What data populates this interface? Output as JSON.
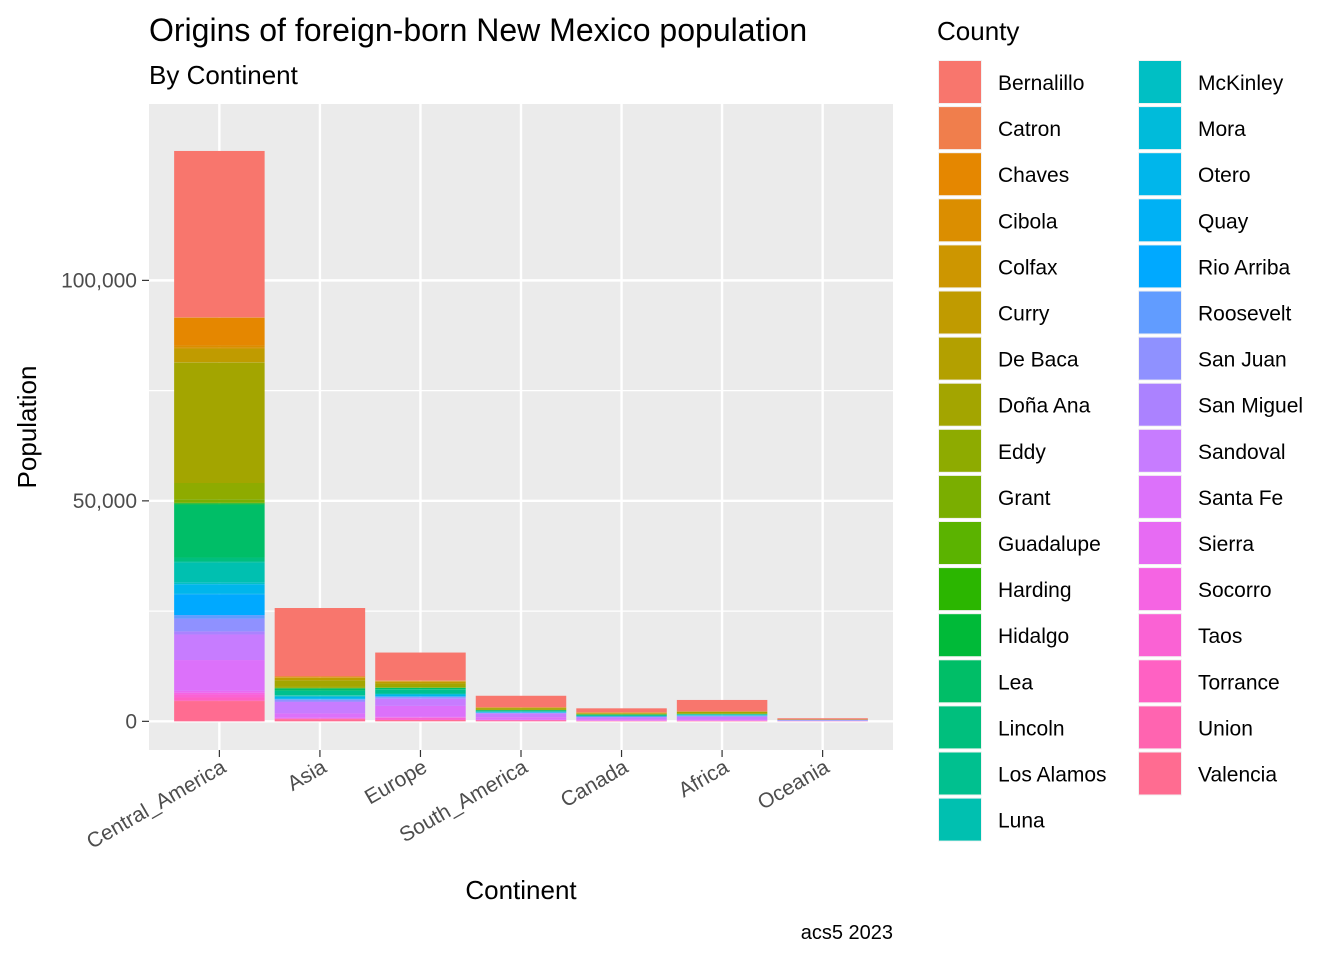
{
  "chart_data": {
    "type": "bar",
    "stacked": true,
    "title": "Origins of foreign-born New Mexico population",
    "subtitle": "By Continent",
    "xlabel": "Continent",
    "ylabel": "Population",
    "caption": "acs5 2023",
    "ylim": [
      -6500,
      140000
    ],
    "yticks": [
      0,
      50000,
      100000
    ],
    "ytick_labels": [
      "0",
      "50,000",
      "100,000"
    ],
    "grid": true,
    "legend_title": "County",
    "legend_position": "right",
    "categories": [
      "Central_America",
      "Asia",
      "Europe",
      "South_America",
      "Canada",
      "Africa",
      "Oceania"
    ],
    "series": [
      {
        "name": "Bernalillo",
        "color": "#F8766D",
        "values": [
          37700,
          15500,
          6300,
          2600,
          900,
          2600,
          300
        ]
      },
      {
        "name": "Catron",
        "color": "#F07E4C",
        "values": [
          100,
          0,
          100,
          0,
          0,
          0,
          0
        ]
      },
      {
        "name": "Chaves",
        "color": "#E58700",
        "values": [
          6300,
          200,
          100,
          100,
          100,
          0,
          0
        ]
      },
      {
        "name": "Cibola",
        "color": "#DB8E00",
        "values": [
          500,
          100,
          50,
          0,
          50,
          0,
          0
        ]
      },
      {
        "name": "Colfax",
        "color": "#CD9600",
        "values": [
          300,
          0,
          50,
          0,
          50,
          0,
          0
        ]
      },
      {
        "name": "Curry",
        "color": "#C09B00",
        "values": [
          3000,
          600,
          400,
          100,
          100,
          100,
          0
        ]
      },
      {
        "name": "De Baca",
        "color": "#B3A000",
        "values": [
          100,
          0,
          0,
          0,
          0,
          0,
          0
        ]
      },
      {
        "name": "Doña Ana",
        "color": "#A3A500",
        "values": [
          27300,
          1500,
          700,
          400,
          100,
          400,
          50
        ]
      },
      {
        "name": "Eddy",
        "color": "#8EAB00",
        "values": [
          3700,
          200,
          200,
          50,
          50,
          50,
          0
        ]
      },
      {
        "name": "Grant",
        "color": "#7AAE00",
        "values": [
          800,
          100,
          100,
          0,
          50,
          0,
          0
        ]
      },
      {
        "name": "Guadalupe",
        "color": "#5BB300",
        "values": [
          100,
          0,
          0,
          0,
          0,
          0,
          0
        ]
      },
      {
        "name": "Harding",
        "color": "#2BB600",
        "values": [
          0,
          0,
          0,
          0,
          0,
          0,
          0
        ]
      },
      {
        "name": "Hidalgo",
        "color": "#00BA38",
        "values": [
          300,
          0,
          0,
          0,
          0,
          0,
          0
        ]
      },
      {
        "name": "Lea",
        "color": "#00BE67",
        "values": [
          12000,
          500,
          300,
          100,
          100,
          100,
          0
        ]
      },
      {
        "name": "Lincoln",
        "color": "#00BF7D",
        "values": [
          800,
          100,
          100,
          0,
          50,
          0,
          0
        ]
      },
      {
        "name": "Los Alamos",
        "color": "#00C08F",
        "values": [
          300,
          1000,
          900,
          200,
          200,
          100,
          50
        ]
      },
      {
        "name": "Luna",
        "color": "#00C0B0",
        "values": [
          4500,
          100,
          100,
          50,
          0,
          0,
          0
        ]
      },
      {
        "name": "McKinley",
        "color": "#00BFC4",
        "values": [
          400,
          200,
          100,
          50,
          0,
          100,
          0
        ]
      },
      {
        "name": "Mora",
        "color": "#00BBDA",
        "values": [
          50,
          0,
          0,
          0,
          0,
          0,
          0
        ]
      },
      {
        "name": "Otero",
        "color": "#00B6EB",
        "values": [
          2200,
          500,
          400,
          100,
          100,
          100,
          50
        ]
      },
      {
        "name": "Quay",
        "color": "#00B1F4",
        "values": [
          100,
          0,
          0,
          0,
          0,
          0,
          0
        ]
      },
      {
        "name": "Rio Arriba",
        "color": "#00A9FF",
        "values": [
          4700,
          100,
          100,
          100,
          0,
          0,
          0
        ]
      },
      {
        "name": "Roosevelt",
        "color": "#619CFF",
        "values": [
          800,
          100,
          100,
          50,
          0,
          50,
          0
        ]
      },
      {
        "name": "San Juan",
        "color": "#8F91FF",
        "values": [
          2900,
          400,
          300,
          100,
          200,
          200,
          0
        ]
      },
      {
        "name": "San Miguel",
        "color": "#AB82FF",
        "values": [
          700,
          100,
          100,
          50,
          0,
          50,
          0
        ]
      },
      {
        "name": "Sandoval",
        "color": "#C77CFF",
        "values": [
          5800,
          2600,
          1600,
          800,
          400,
          600,
          100
        ]
      },
      {
        "name": "Santa Fe",
        "color": "#DC71FA",
        "values": [
          7000,
          1000,
          2500,
          600,
          300,
          200,
          100
        ]
      },
      {
        "name": "Sierra",
        "color": "#E76BF3",
        "values": [
          400,
          50,
          100,
          0,
          50,
          0,
          0
        ]
      },
      {
        "name": "Socorro",
        "color": "#F564E3",
        "values": [
          400,
          100,
          100,
          50,
          0,
          50,
          0
        ]
      },
      {
        "name": "Taos",
        "color": "#FA62D4",
        "values": [
          700,
          100,
          400,
          100,
          50,
          50,
          0
        ]
      },
      {
        "name": "Torrance",
        "color": "#FF61C3",
        "values": [
          700,
          50,
          100,
          0,
          0,
          0,
          0
        ]
      },
      {
        "name": "Union",
        "color": "#FF64B0",
        "values": [
          100,
          0,
          0,
          0,
          0,
          0,
          0
        ]
      },
      {
        "name": "Valencia",
        "color": "#FF6C91",
        "values": [
          4600,
          500,
          300,
          200,
          100,
          100,
          50
        ]
      }
    ]
  }
}
